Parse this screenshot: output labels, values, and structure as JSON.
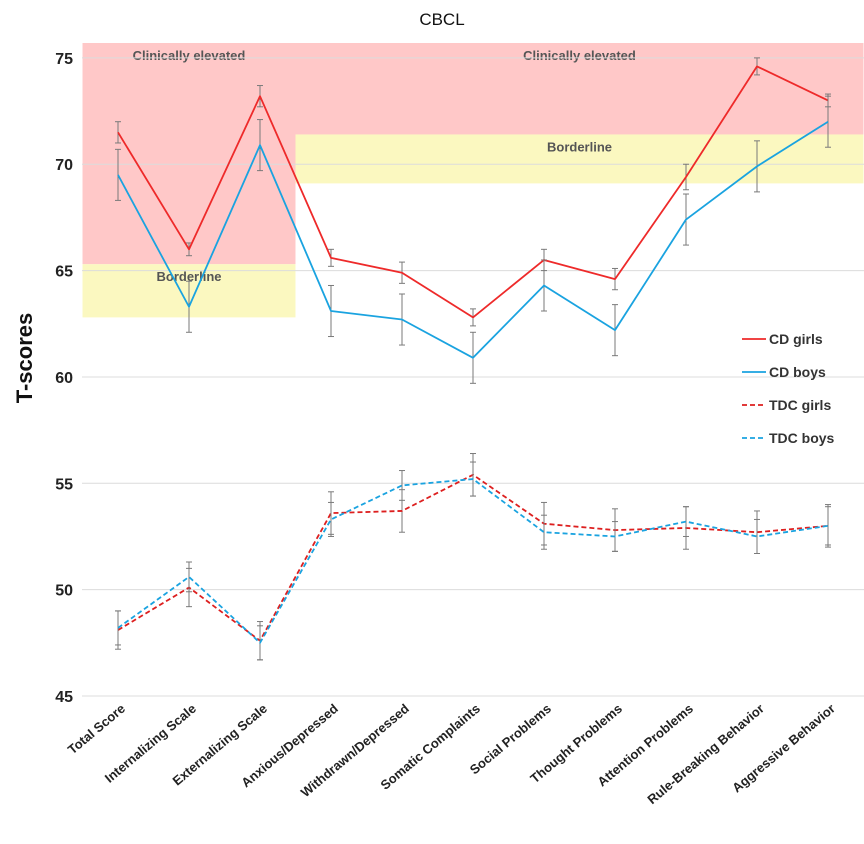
{
  "chart_data": {
    "type": "line",
    "title": "CBCL",
    "xlabel": "",
    "ylabel": "T-scores",
    "ylim": [
      45,
      75.7
    ],
    "yticks": [
      45,
      50,
      55,
      60,
      65,
      70,
      75
    ],
    "grid": true,
    "legend_position": "right",
    "categories": [
      "Total Score",
      "Internalizing Scale",
      "Externalizing Scale",
      "Anxious/Depressed",
      "Withdrawn/Depressed",
      "Somatic Complaints",
      "Social Problems",
      "Thought Problems",
      "Attention Problems",
      "Rule-Breaking Behavior",
      "Aggressive Behavior"
    ],
    "bands": [
      {
        "label": "Clinically elevated",
        "kind": "clinical",
        "x_start": -0.5,
        "x_end": 2.5,
        "y_from": 65.3,
        "y_to": 75.7,
        "color": "#ffc8c8"
      },
      {
        "label": "Borderline",
        "kind": "borderline",
        "x_start": -0.5,
        "x_end": 2.5,
        "y_from": 62.8,
        "y_to": 65.3,
        "color": "#fbf8c0"
      },
      {
        "label": "Clinically elevated",
        "kind": "clinical",
        "x_start": 2.5,
        "x_end": 10.5,
        "y_from": 71.4,
        "y_to": 75.7,
        "color": "#ffc8c8"
      },
      {
        "label": "Borderline",
        "kind": "borderline",
        "x_start": 2.5,
        "x_end": 10.5,
        "y_from": 69.1,
        "y_to": 71.4,
        "color": "#fbf8c0"
      }
    ],
    "series": [
      {
        "name": "CD girls",
        "color": "#ee2a2a",
        "dash": false,
        "values": [
          71.5,
          66.0,
          73.2,
          65.6,
          64.9,
          62.8,
          65.5,
          64.6,
          69.4,
          74.6,
          73.0
        ],
        "errors": [
          0.5,
          0.3,
          0.5,
          0.4,
          0.5,
          0.4,
          0.5,
          0.5,
          0.6,
          0.4,
          0.3
        ]
      },
      {
        "name": "CD boys",
        "color": "#1aa3e0",
        "dash": false,
        "values": [
          69.5,
          63.3,
          70.9,
          63.1,
          62.7,
          60.9,
          64.3,
          62.2,
          67.4,
          69.9,
          72.0
        ],
        "errors": [
          1.2,
          1.2,
          1.2,
          1.2,
          1.2,
          1.2,
          1.2,
          1.2,
          1.2,
          1.2,
          1.2
        ]
      },
      {
        "name": "TDC girls",
        "color": "#dd1f1f",
        "dash": true,
        "values": [
          48.1,
          50.1,
          47.6,
          53.6,
          53.7,
          55.4,
          53.1,
          52.8,
          52.9,
          52.7,
          53.0
        ],
        "errors": [
          0.9,
          0.9,
          0.9,
          1.0,
          1.0,
          1.0,
          1.0,
          1.0,
          1.0,
          1.0,
          1.0
        ]
      },
      {
        "name": "TDC boys",
        "color": "#1aa3e0",
        "dash": true,
        "values": [
          48.2,
          50.6,
          47.5,
          53.3,
          54.9,
          55.2,
          52.7,
          52.5,
          53.2,
          52.5,
          53.0
        ],
        "errors": [
          0.8,
          0.7,
          0.8,
          0.8,
          0.7,
          0.8,
          0.8,
          0.7,
          0.7,
          0.8,
          0.9
        ]
      }
    ]
  }
}
